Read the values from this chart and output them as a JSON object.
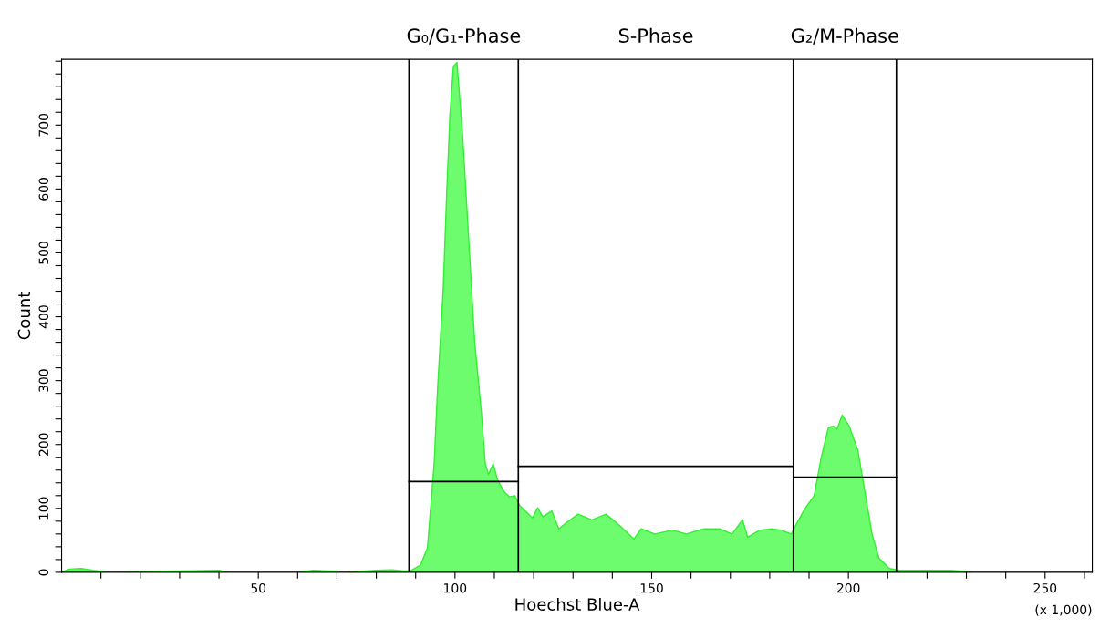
{
  "chart_data": {
    "type": "area",
    "xlabel": "Hoechst Blue-A",
    "ylabel": "Count",
    "annotations": [
      "G₀/G₁-Phase",
      "S-Phase",
      "G₂/M-Phase",
      "(x 1,000)"
    ],
    "xlim": [
      0,
      262
    ],
    "ylim": [
      0,
      803
    ],
    "xticks": [
      {
        "value": 10,
        "label": null
      },
      {
        "value": 20,
        "label": null
      },
      {
        "value": 30,
        "label": null
      },
      {
        "value": 40,
        "label": null
      },
      50,
      {
        "value": 60,
        "label": null
      },
      {
        "value": 70,
        "label": null
      },
      {
        "value": 80,
        "label": null
      },
      {
        "value": 90,
        "label": null
      },
      100,
      {
        "value": 110,
        "label": null
      },
      {
        "value": 120,
        "label": null
      },
      {
        "value": 130,
        "label": null
      },
      {
        "value": 140,
        "label": null
      },
      150,
      {
        "value": 160,
        "label": null
      },
      {
        "value": 170,
        "label": null
      },
      {
        "value": 180,
        "label": null
      },
      {
        "value": 190,
        "label": null
      },
      200,
      {
        "value": 210,
        "label": null
      },
      {
        "value": 220,
        "label": null
      },
      {
        "value": 230,
        "label": null
      },
      {
        "value": 240,
        "label": null
      },
      250,
      {
        "value": 260,
        "label": null
      }
    ],
    "yticks": [
      0,
      {
        "value": 20,
        "label": null
      },
      {
        "value": 40,
        "label": null
      },
      {
        "value": 60,
        "label": null
      },
      {
        "value": 80,
        "label": null
      },
      100,
      {
        "value": 120,
        "label": null
      },
      {
        "value": 140,
        "label": null
      },
      {
        "value": 160,
        "label": null
      },
      {
        "value": 180,
        "label": null
      },
      200,
      {
        "value": 220,
        "label": null
      },
      {
        "value": 240,
        "label": null
      },
      {
        "value": 260,
        "label": null
      },
      {
        "value": 280,
        "label": null
      },
      300,
      {
        "value": 320,
        "label": null
      },
      {
        "value": 340,
        "label": null
      },
      {
        "value": 360,
        "label": null
      },
      {
        "value": 380,
        "label": null
      },
      400,
      {
        "value": 420,
        "label": null
      },
      {
        "value": 440,
        "label": null
      },
      {
        "value": 460,
        "label": null
      },
      {
        "value": 480,
        "label": null
      },
      500,
      {
        "value": 520,
        "label": null
      },
      {
        "value": 540,
        "label": null
      },
      {
        "value": 560,
        "label": null
      },
      {
        "value": 580,
        "label": null
      },
      600,
      {
        "value": 620,
        "label": null
      },
      {
        "value": 640,
        "label": null
      },
      {
        "value": 660,
        "label": null
      },
      {
        "value": 680,
        "label": null
      },
      700,
      {
        "value": 720,
        "label": null
      },
      {
        "value": 740,
        "label": null
      },
      {
        "value": 760,
        "label": null
      },
      {
        "value": 780,
        "label": null
      },
      {
        "value": 800,
        "label": null
      }
    ],
    "grid": false,
    "legend": false,
    "ref_lines": [
      {
        "axis": "x",
        "value": 88.3,
        "color": "#000000"
      },
      {
        "axis": "x",
        "value": 116.1,
        "color": "#000000"
      },
      {
        "axis": "x",
        "value": 186,
        "color": "#000000"
      },
      {
        "axis": "x",
        "value": 212.2,
        "color": "#000000"
      }
    ],
    "series": [
      {
        "color": "#6dfc6d",
        "x": [
          0,
          2,
          5,
          8,
          12,
          40,
          42,
          60,
          64,
          68,
          72,
          80,
          84,
          87,
          88.5,
          91.2,
          93.0,
          94.7,
          95.6,
          97.0,
          97.9,
          98.7,
          99.6,
          100.5,
          101.9,
          103.2,
          105.0,
          106.7,
          107.7,
          108.5,
          109.7,
          110.8,
          112.6,
          113.9,
          115.2,
          116.5,
          119.7,
          121.0,
          122.3,
          124.6,
          126.4,
          128.6,
          131.3,
          134.8,
          138.4,
          141.9,
          145.5,
          147.3,
          150.8,
          155.3,
          158.8,
          163.3,
          167.3,
          170.4,
          173.1,
          174.4,
          177.5,
          180.6,
          182.9,
          185.5,
          186.9,
          189.1,
          191.3,
          193.1,
          194.9,
          196.2,
          197.1,
          198.4,
          200.2,
          202.4,
          204.2,
          206.0,
          207.8,
          210.4,
          213.1,
          220,
          226,
          232,
          262
        ],
        "values": [
          0,
          5,
          6,
          3,
          0,
          3,
          0,
          0,
          3,
          2,
          0,
          3,
          4,
          2,
          2,
          11,
          38,
          170,
          290,
          442,
          595,
          715,
          792,
          798,
          688,
          552,
          361,
          251,
          170,
          153,
          170,
          145,
          125,
          118,
          120,
          104,
          85,
          101,
          87,
          96,
          68,
          79,
          91,
          82,
          91,
          73,
          52,
          68,
          60,
          66,
          60,
          68,
          68,
          60,
          82,
          55,
          66,
          68,
          66,
          60,
          77,
          101,
          120,
          180,
          226,
          229,
          224,
          246,
          229,
          191,
          126,
          60,
          22,
          6,
          3,
          3,
          3,
          0,
          0
        ]
      },
      {
        "type": "line",
        "color": "#000000",
        "x": [
          88.3,
          116.1
        ],
        "values": [
          142,
          142
        ]
      },
      {
        "type": "line",
        "color": "#000000",
        "x": [
          116.1,
          186
        ],
        "values": [
          166,
          166
        ]
      },
      {
        "type": "line",
        "color": "#000000",
        "x": [
          186,
          212.2
        ],
        "values": [
          149,
          149
        ]
      }
    ]
  }
}
